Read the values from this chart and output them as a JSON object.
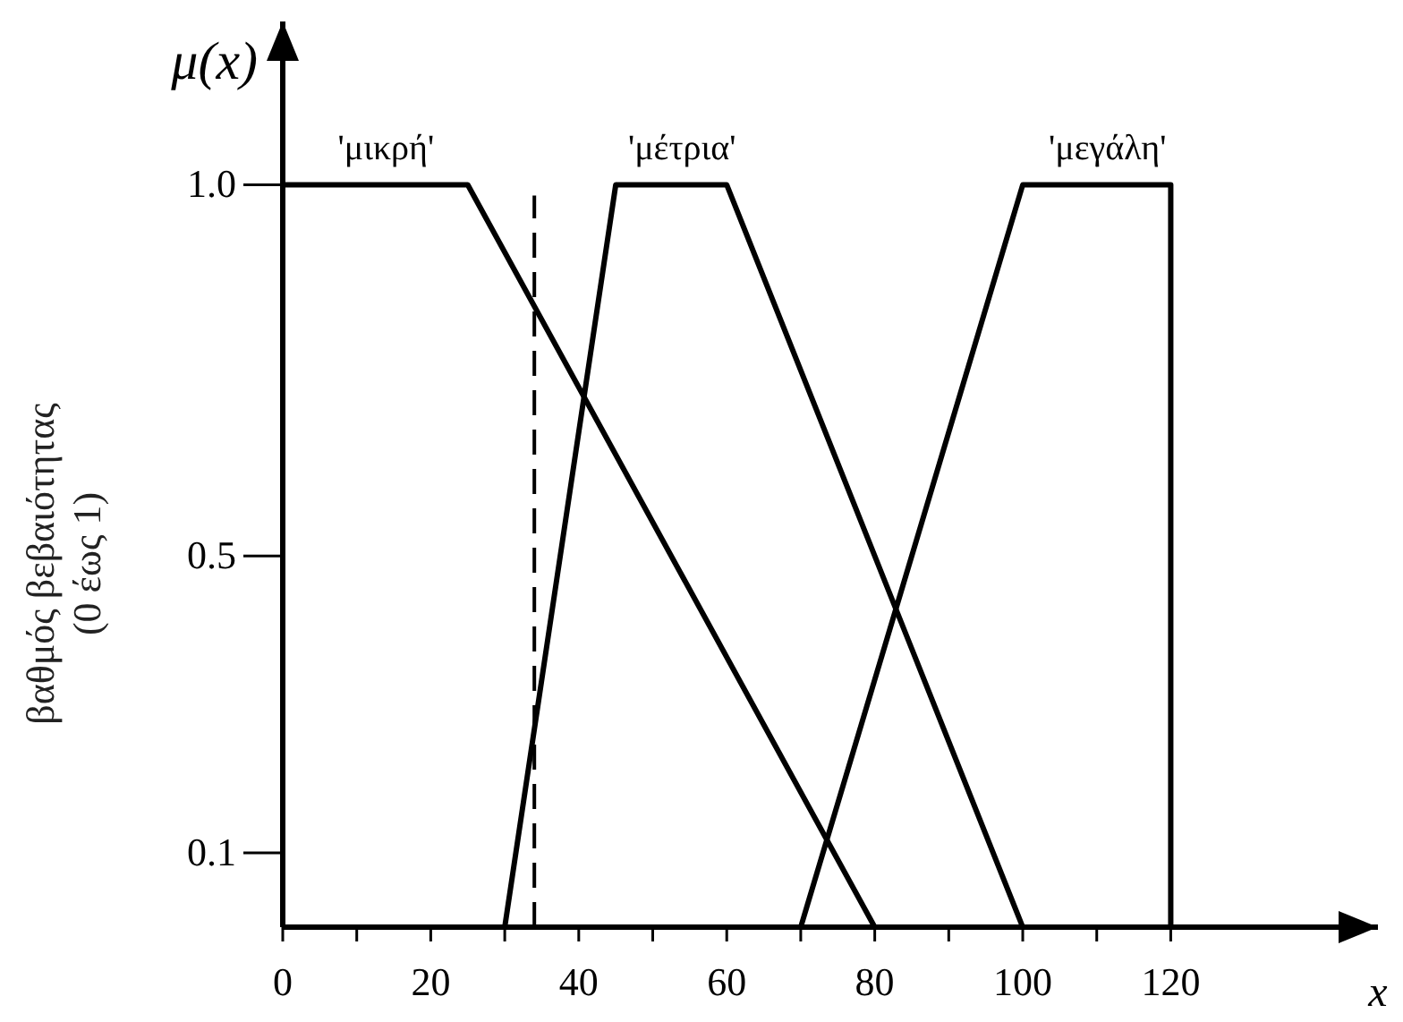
{
  "chart_data": {
    "type": "line",
    "xlabel": "x",
    "ylabel": "βαθμός βεβαιότητας\n(0 έως 1)",
    "annotations": [
      "μ(x)"
    ],
    "xlim": [
      0,
      148
    ],
    "ylim": [
      0,
      1.22
    ],
    "xticks": [
      0,
      {
        "value": 10,
        "label": null
      },
      20,
      {
        "value": 30,
        "label": null
      },
      40,
      {
        "value": 50,
        "label": null
      },
      60,
      {
        "value": 70,
        "label": null
      },
      80,
      {
        "value": 90,
        "label": null
      },
      100,
      {
        "value": 110,
        "label": null
      },
      120
    ],
    "yticks": [
      0.1,
      0.5,
      {
        "value": 1,
        "label": "1.0"
      }
    ],
    "marker": "none",
    "line_style": "solid",
    "series": [
      {
        "name": "'μικρή'",
        "color": "#000000",
        "x": [
          0,
          25,
          80
        ],
        "values": [
          1,
          1,
          0
        ]
      },
      {
        "name": "'μέτρια'",
        "color": "#000000",
        "x": [
          30,
          45,
          60,
          100
        ],
        "values": [
          0,
          1,
          1,
          0
        ]
      },
      {
        "name": "'μεγάλη'",
        "color": "#000000",
        "x": [
          70,
          100,
          120,
          120
        ],
        "values": [
          0,
          1,
          1,
          0
        ]
      }
    ],
    "ref_lines": [
      {
        "axis": "x",
        "value": 34,
        "line_style": "dashed",
        "color": "#000000"
      }
    ]
  }
}
